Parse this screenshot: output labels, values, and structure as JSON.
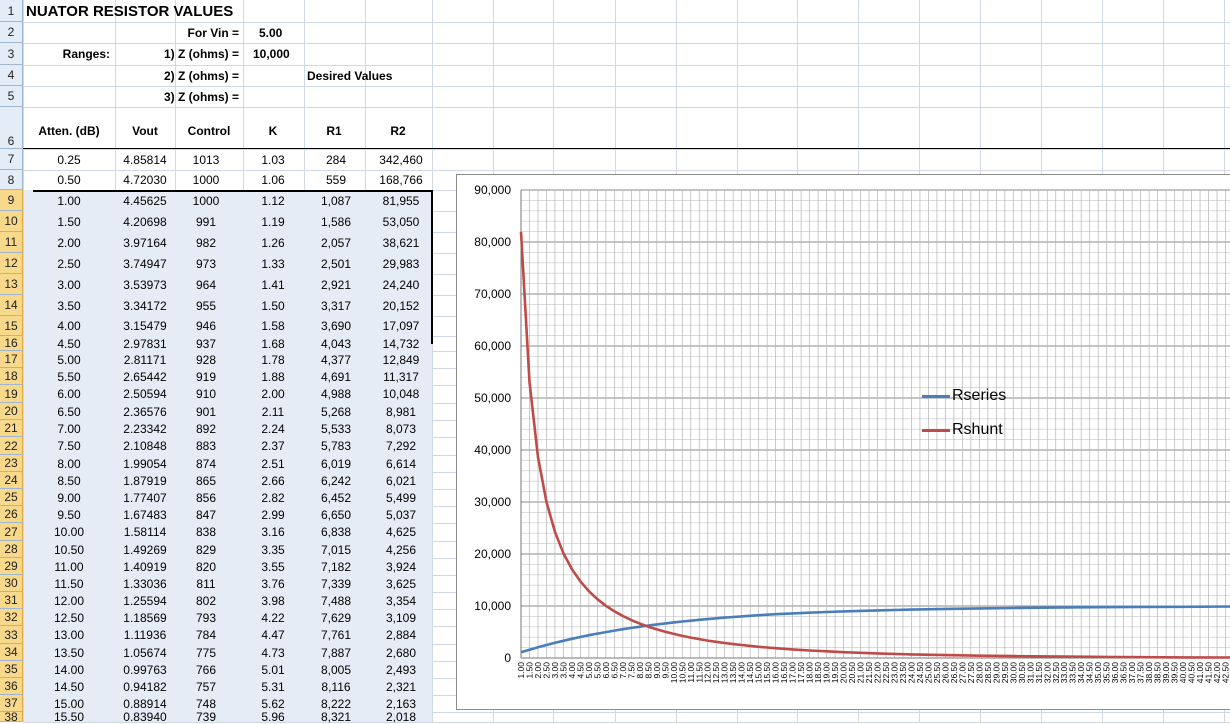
{
  "sheet": {
    "title": "NUATOR RESISTOR VALUES",
    "for_vin_label": "For Vin =",
    "for_vin_value": "5.00",
    "ranges_label": "Ranges:",
    "z1_label": "1) Z (ohms) =",
    "z1_value": "10,000",
    "z2_label": "2) Z (ohms) =",
    "z3_label": "3) Z (ohms) =",
    "desired_label": "Desired Values"
  },
  "table": {
    "headers": [
      "Atten. (dB)",
      "Vout",
      "Control",
      "K",
      "R1",
      "R2"
    ],
    "rows": [
      [
        "0.25",
        "4.85814",
        "1013",
        "1.03",
        "284",
        "342,460"
      ],
      [
        "0.50",
        "4.72030",
        "1000",
        "1.06",
        "559",
        "168,766"
      ],
      [
        "1.00",
        "4.45625",
        "1000",
        "1.12",
        "1,087",
        "81,955"
      ],
      [
        "1.50",
        "4.20698",
        "991",
        "1.19",
        "1,586",
        "53,050"
      ],
      [
        "2.00",
        "3.97164",
        "982",
        "1.26",
        "2,057",
        "38,621"
      ],
      [
        "2.50",
        "3.74947",
        "973",
        "1.33",
        "2,501",
        "29,983"
      ],
      [
        "3.00",
        "3.53973",
        "964",
        "1.41",
        "2,921",
        "24,240"
      ],
      [
        "3.50",
        "3.34172",
        "955",
        "1.50",
        "3,317",
        "20,152"
      ],
      [
        "4.00",
        "3.15479",
        "946",
        "1.58",
        "3,690",
        "17,097"
      ],
      [
        "4.50",
        "2.97831",
        "937",
        "1.68",
        "4,043",
        "14,732"
      ],
      [
        "5.00",
        "2.81171",
        "928",
        "1.78",
        "4,377",
        "12,849"
      ],
      [
        "5.50",
        "2.65442",
        "919",
        "1.88",
        "4,691",
        "11,317"
      ],
      [
        "6.00",
        "2.50594",
        "910",
        "2.00",
        "4,988",
        "10,048"
      ],
      [
        "6.50",
        "2.36576",
        "901",
        "2.11",
        "5,268",
        "8,981"
      ],
      [
        "7.00",
        "2.23342",
        "892",
        "2.24",
        "5,533",
        "8,073"
      ],
      [
        "7.50",
        "2.10848",
        "883",
        "2.37",
        "5,783",
        "7,292"
      ],
      [
        "8.00",
        "1.99054",
        "874",
        "2.51",
        "6,019",
        "6,614"
      ],
      [
        "8.50",
        "1.87919",
        "865",
        "2.66",
        "6,242",
        "6,021"
      ],
      [
        "9.00",
        "1.77407",
        "856",
        "2.82",
        "6,452",
        "5,499"
      ],
      [
        "9.50",
        "1.67483",
        "847",
        "2.99",
        "6,650",
        "5,037"
      ],
      [
        "10.00",
        "1.58114",
        "838",
        "3.16",
        "6,838",
        "4,625"
      ],
      [
        "10.50",
        "1.49269",
        "829",
        "3.35",
        "7,015",
        "4,256"
      ],
      [
        "11.00",
        "1.40919",
        "820",
        "3.55",
        "7,182",
        "3,924"
      ],
      [
        "11.50",
        "1.33036",
        "811",
        "3.76",
        "7,339",
        "3,625"
      ],
      [
        "12.00",
        "1.25594",
        "802",
        "3.98",
        "7,488",
        "3,354"
      ],
      [
        "12.50",
        "1.18569",
        "793",
        "4.22",
        "7,629",
        "3,109"
      ],
      [
        "13.00",
        "1.11936",
        "784",
        "4.47",
        "7,761",
        "2,884"
      ],
      [
        "13.50",
        "1.05674",
        "775",
        "4.73",
        "7,887",
        "2,680"
      ],
      [
        "14.00",
        "0.99763",
        "766",
        "5.01",
        "8,005",
        "2,493"
      ],
      [
        "14.50",
        "0.94182",
        "757",
        "5.31",
        "8,116",
        "2,321"
      ],
      [
        "15.00",
        "0.88914",
        "748",
        "5.62",
        "8,222",
        "2,163"
      ],
      [
        "15.50",
        "0.83940",
        "739",
        "5.96",
        "8,321",
        "2,018"
      ]
    ]
  },
  "row_numbers": [
    "1",
    "2",
    "3",
    "4",
    "5",
    "6",
    "7",
    "8",
    "9",
    "10",
    "11",
    "12",
    "13",
    "14",
    "15",
    "16",
    "17",
    "18",
    "19",
    "20",
    "21",
    "22",
    "23",
    "24",
    "25",
    "26",
    "27",
    "28",
    "29",
    "30",
    "31",
    "32",
    "33",
    "34",
    "35",
    "36",
    "37",
    "38"
  ],
  "chart_data": {
    "type": "line",
    "ylim": [
      0,
      90000
    ],
    "ytick_labels": [
      "0",
      "10,000",
      "20,000",
      "30,000",
      "40,000",
      "50,000",
      "60,000",
      "70,000",
      "80,000",
      "90,000"
    ],
    "x_start": 1.0,
    "x_step": 0.5,
    "x_end": 43.0,
    "x_tick_decimals": 2,
    "legend_position": "right",
    "grid": true,
    "series": [
      {
        "name": "Rseries",
        "color": "#4a7ebb",
        "x": [
          1.0,
          1.5,
          2.0,
          2.5,
          3.0,
          3.5,
          4.0,
          4.5,
          5.0,
          5.5,
          6.0,
          6.5,
          7.0,
          7.5,
          8.0,
          8.5,
          9.0,
          9.5,
          10.0,
          10.5,
          11.0,
          11.5,
          12.0,
          12.5,
          13.0,
          13.5,
          14.0,
          14.5,
          15.0,
          15.5,
          16,
          17,
          18,
          19,
          20,
          22,
          24,
          26,
          28,
          30,
          33,
          36,
          40,
          43
        ],
        "values": [
          1087,
          1586,
          2057,
          2501,
          2921,
          3317,
          3690,
          4043,
          4377,
          4691,
          4988,
          5268,
          5533,
          5783,
          6019,
          6242,
          6452,
          6650,
          6838,
          7015,
          7182,
          7339,
          7488,
          7629,
          7761,
          7887,
          8005,
          8116,
          8222,
          8321,
          8420,
          8570,
          8720,
          8850,
          8960,
          9150,
          9310,
          9440,
          9540,
          9620,
          9720,
          9790,
          9850,
          9900
        ]
      },
      {
        "name": "Rshunt",
        "color": "#be4b48",
        "x": [
          1.0,
          1.5,
          2.0,
          2.5,
          3.0,
          3.5,
          4.0,
          4.5,
          5.0,
          5.5,
          6.0,
          6.5,
          7.0,
          7.5,
          8.0,
          8.5,
          9.0,
          9.5,
          10.0,
          10.5,
          11.0,
          11.5,
          12.0,
          12.5,
          13.0,
          13.5,
          14.0,
          14.5,
          15.0,
          15.5,
          16,
          17,
          18,
          19,
          20,
          22,
          24,
          26,
          28,
          30,
          33,
          36,
          40,
          43
        ],
        "values": [
          81955,
          53050,
          38621,
          29983,
          24240,
          20152,
          17097,
          14732,
          12849,
          11317,
          10048,
          8981,
          8073,
          7292,
          6614,
          6021,
          5499,
          5037,
          4625,
          4256,
          3924,
          3625,
          3354,
          3109,
          2884,
          2680,
          2493,
          2321,
          2163,
          2018,
          1880,
          1650,
          1450,
          1280,
          1120,
          880,
          700,
          560,
          450,
          360,
          260,
          190,
          120,
          90
        ]
      }
    ]
  }
}
